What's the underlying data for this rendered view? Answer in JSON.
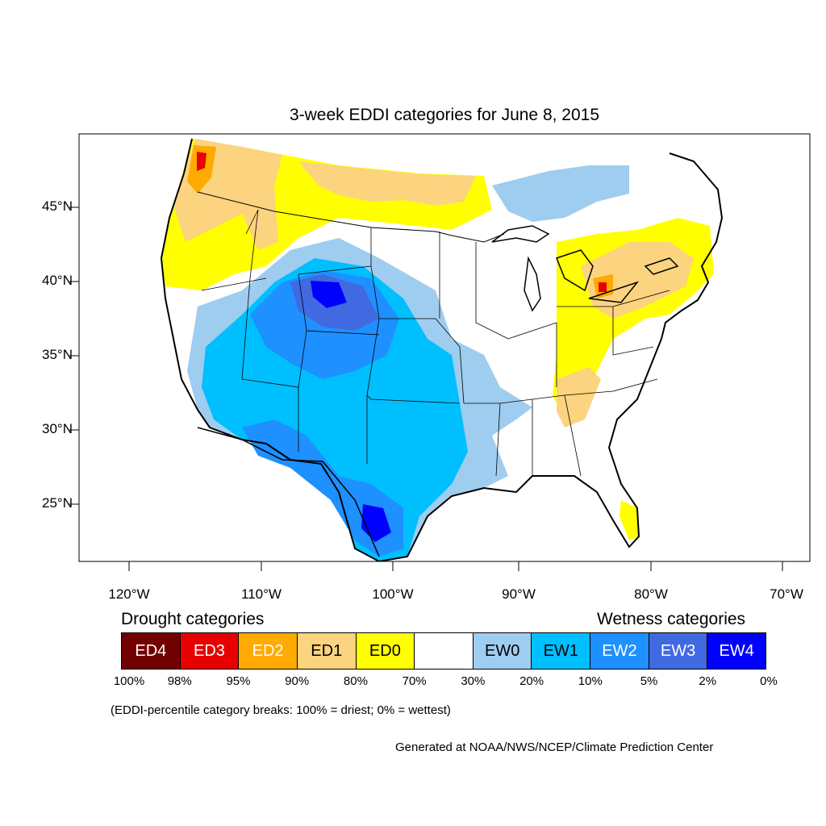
{
  "title": "3-week EDDI categories for June 8, 2015",
  "lat_labels": [
    "45°N",
    "40°N",
    "35°N",
    "30°N",
    "25°N"
  ],
  "lon_labels": [
    "120°W",
    "110°W",
    "100°W",
    "90°W",
    "80°W",
    "70°W"
  ],
  "legend": {
    "drought_heading": "Drought categories",
    "wetness_heading": "Wetness categories",
    "categories": [
      {
        "label": "ED4",
        "color": "#730000",
        "text_color": "#ffffff"
      },
      {
        "label": "ED3",
        "color": "#e60000",
        "text_color": "#ffffff"
      },
      {
        "label": "ED2",
        "color": "#ffaa00",
        "text_color": "#ffffff"
      },
      {
        "label": "ED1",
        "color": "#fcd37f",
        "text_color": "#000000"
      },
      {
        "label": "ED0",
        "color": "#ffff00",
        "text_color": "#000000"
      },
      {
        "label": "",
        "color": "#ffffff",
        "text_color": "#000000"
      },
      {
        "label": "EW0",
        "color": "#9fcdf0",
        "text_color": "#000000"
      },
      {
        "label": "EW1",
        "color": "#00bfff",
        "text_color": "#000000"
      },
      {
        "label": "EW2",
        "color": "#1e90ff",
        "text_color": "#ffffff"
      },
      {
        "label": "EW3",
        "color": "#4169e1",
        "text_color": "#ffffff"
      },
      {
        "label": "EW4",
        "color": "#0000ff",
        "text_color": "#ffffff"
      }
    ],
    "percent_breaks": [
      "100%",
      "98%",
      "95%",
      "90%",
      "80%",
      "70%",
      "30%",
      "20%",
      "10%",
      "5%",
      "2%",
      "0%"
    ],
    "break_note": "(EDDI-percentile category break​s: 100% = driest; 0% = wettest)"
  },
  "credit": "Generated at NOAA/NWS/NCEP/Climate Prediction Center"
}
